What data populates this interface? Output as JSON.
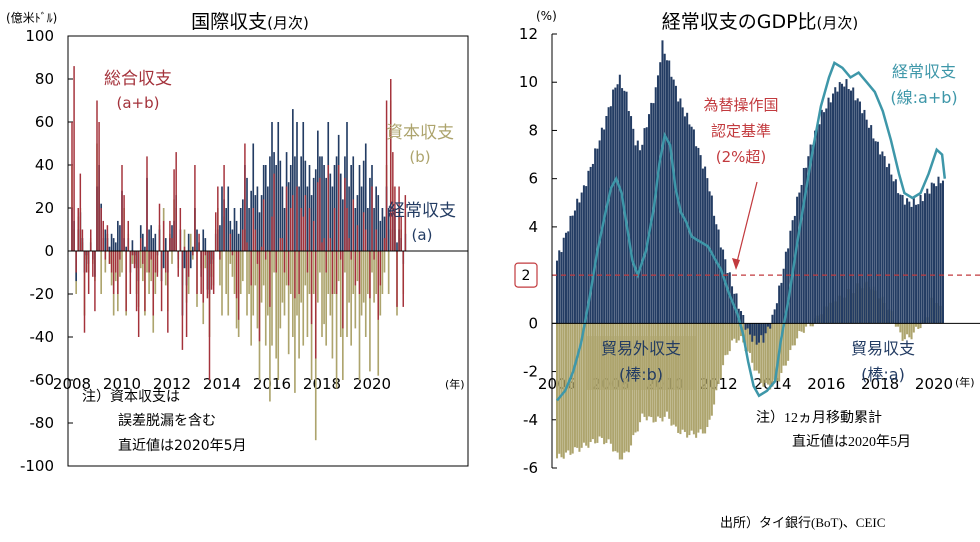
{
  "colors": {
    "current": "#233c63",
    "capital": "#ada46d",
    "overall": "#a4323b",
    "line": "#3e97a9",
    "threshold": "#c23a3e"
  },
  "source": "出所）タイ銀行(BoT)、CEIC",
  "chart_data": [
    {
      "type": "bar",
      "title": "国際収支",
      "title_suffix": "(月次)",
      "ylabel": "(億米ﾄﾞﾙ)",
      "xlabel": "(年)",
      "ylim": [
        -100,
        100
      ],
      "yticks": [
        "100",
        "80",
        "60",
        "40",
        "20",
        "0",
        "-20",
        "-40",
        "-60",
        "-80",
        "-100"
      ],
      "xticks": [
        "2008",
        "2010",
        "2012",
        "2014",
        "2016",
        "2018",
        "2020"
      ],
      "x_start": "2008-01",
      "x_end": "2020-05",
      "grid": false,
      "series_labels": {
        "overall": [
          "総合収支",
          "(a+b)"
        ],
        "capital": [
          "資本収支",
          "(b)"
        ],
        "current": [
          "経常収支",
          "(a)"
        ]
      },
      "note": [
        "注）資本収支は",
        "誤差脱漏を含む",
        "直近値は2020年5月"
      ],
      "current_account_monthly": [
        20,
        14,
        -14,
        10,
        18,
        6,
        -10,
        -2,
        -6,
        4,
        -4,
        -12,
        30,
        40,
        22,
        6,
        10,
        6,
        2,
        8,
        6,
        4,
        14,
        12,
        28,
        6,
        2,
        6,
        -10,
        5,
        -2,
        -8,
        -14,
        12,
        8,
        2,
        34,
        10,
        12,
        6,
        8,
        -2,
        10,
        -14,
        -8,
        6,
        -10,
        6,
        12,
        14,
        26,
        -4,
        10,
        -30,
        -8,
        -16,
        8,
        -8,
        2,
        20,
        10,
        4,
        -12,
        10,
        6,
        -18,
        -20,
        -6,
        -4,
        8,
        10,
        12,
        30,
        24,
        20,
        30,
        14,
        10,
        20,
        14,
        8,
        20,
        24,
        40,
        34,
        20,
        28,
        50,
        26,
        30,
        18,
        26,
        40,
        40,
        30,
        44,
        60,
        46,
        40,
        60,
        42,
        30,
        20,
        46,
        32,
        40,
        66,
        44,
        60,
        30,
        44,
        60,
        42,
        30,
        40,
        26,
        34,
        38,
        56,
        44,
        44,
        40,
        34,
        60,
        36,
        30,
        40,
        44,
        54,
        36,
        24,
        44,
        60,
        30,
        40,
        44,
        20,
        26,
        40,
        30,
        42,
        50,
        20,
        34,
        40,
        20,
        30,
        26,
        14,
        20,
        16,
        30,
        20,
        10,
        16,
        20,
        4,
        10,
        6,
        -6,
        8
      ],
      "capital_account_monthly": [
        40,
        10,
        -20,
        16,
        20,
        4,
        -30,
        -4,
        -10,
        6,
        -6,
        -14,
        50,
        30,
        -20,
        10,
        -10,
        8,
        -6,
        -16,
        -30,
        -14,
        -28,
        -12,
        -10,
        20,
        -30,
        8,
        -10,
        -6,
        -6,
        -20,
        -26,
        -8,
        -14,
        -30,
        -10,
        -20,
        -14,
        -38,
        -20,
        -10,
        12,
        -14,
        20,
        -16,
        -28,
        8,
        -6,
        24,
        20,
        -8,
        10,
        -16,
        10,
        -24,
        -20,
        8,
        -4,
        20,
        -26,
        4,
        -8,
        -34,
        -8,
        -4,
        -40,
        -12,
        -16,
        10,
        20,
        -16,
        -30,
        16,
        -20,
        -30,
        -6,
        -12,
        -20,
        -36,
        -40,
        -20,
        -14,
        10,
        -30,
        -20,
        -44,
        -30,
        -16,
        -36,
        -60,
        -24,
        -16,
        -44,
        -30,
        -70,
        -44,
        -10,
        -50,
        -60,
        -36,
        -24,
        -30,
        -16,
        -48,
        -20,
        -40,
        -66,
        -30,
        -50,
        -24,
        -44,
        -16,
        -40,
        -20,
        -60,
        -20,
        -88,
        -24,
        -10,
        -40,
        -34,
        -44,
        -20,
        -30,
        -50,
        -20,
        -64,
        -14,
        -40,
        -60,
        -10,
        -40,
        -24,
        -44,
        -20,
        -36,
        -14,
        -60,
        -30,
        -24,
        -40,
        -20,
        -56,
        -10,
        -24,
        -20,
        -58,
        -30,
        -20,
        -10,
        40,
        -20,
        70,
        30,
        10,
        -30,
        20,
        10,
        -20,
        18
      ],
      "overall_balance_monthly": [
        60,
        86,
        -10,
        20,
        36,
        10,
        -38,
        -10,
        -20,
        10,
        -12,
        -28,
        70,
        60,
        20,
        14,
        -4,
        12,
        -6,
        -10,
        -20,
        -10,
        -20,
        -4,
        40,
        26,
        -28,
        14,
        -20,
        -2,
        -8,
        -28,
        -40,
        6,
        -6,
        -28,
        44,
        -10,
        -4,
        -30,
        -10,
        -12,
        22,
        -28,
        14,
        -10,
        -38,
        14,
        6,
        38,
        46,
        -12,
        20,
        -46,
        2,
        -40,
        -12,
        0,
        -2,
        40,
        -20,
        8,
        -20,
        -24,
        -2,
        -22,
        -60,
        -18,
        -20,
        18,
        30,
        -4,
        0,
        40,
        0,
        0,
        8,
        -2,
        0,
        -22,
        -32,
        0,
        10,
        50,
        4,
        0,
        -16,
        20,
        10,
        -6,
        -42,
        2,
        24,
        -4,
        0,
        -26,
        16,
        36,
        -10,
        0,
        6,
        6,
        -10,
        30,
        -16,
        20,
        26,
        -22,
        30,
        -20,
        20,
        16,
        26,
        -10,
        20,
        -34,
        14,
        -50,
        32,
        34,
        4,
        6,
        -10,
        40,
        6,
        -20,
        20,
        -20,
        40,
        -4,
        -36,
        34,
        20,
        6,
        -4,
        24,
        -16,
        12,
        -20,
        0,
        18,
        10,
        0,
        -22,
        30,
        -4,
        10,
        -32,
        -16,
        0,
        6,
        70,
        0,
        80,
        46,
        30,
        -26,
        30,
        16,
        -26,
        26
      ]
    },
    {
      "type": "bar",
      "title": "経常収支のGDP比",
      "title_suffix": "(月次)",
      "ylabel": "(%)",
      "xlabel": "(年)",
      "ylim": [
        -6,
        12
      ],
      "yticks": [
        "12",
        "10",
        "8",
        "6",
        "4",
        "2",
        "0",
        "-2",
        "-4",
        "-6"
      ],
      "xticks": [
        "2006",
        "2008",
        "2010",
        "2012",
        "2014",
        "2016",
        "2018",
        "2020"
      ],
      "x_start": "2006-01",
      "x_end": "2020-05",
      "grid": false,
      "threshold": {
        "value": 2,
        "label": "2",
        "text": [
          "為替操作国",
          "認定基準",
          "(2%超)"
        ]
      },
      "series_labels": {
        "line": [
          "経常収支",
          "(線:a+b)"
        ],
        "services": [
          "貿易外収支",
          "(棒:b)"
        ],
        "trade": [
          "貿易収支",
          "(棒:a)"
        ]
      },
      "note": [
        "注）12ヵ月移動累計",
        "直近値は2020年5月"
      ],
      "trade_balance_pct": [
        [
          2006.0,
          2.6
        ],
        [
          2006.3,
          3.6
        ],
        [
          2006.6,
          4.6
        ],
        [
          2007.0,
          5.6
        ],
        [
          2007.4,
          7.0
        ],
        [
          2007.8,
          8.4
        ],
        [
          2008.1,
          9.6
        ],
        [
          2008.3,
          10.2
        ],
        [
          2008.6,
          9.4
        ],
        [
          2008.9,
          7.6
        ],
        [
          2009.1,
          7.2
        ],
        [
          2009.4,
          8.6
        ],
        [
          2009.7,
          9.8
        ],
        [
          2009.9,
          11.6
        ],
        [
          2010.2,
          10.6
        ],
        [
          2010.5,
          9.4
        ],
        [
          2010.8,
          8.6
        ],
        [
          2011.0,
          8.2
        ],
        [
          2011.3,
          7.0
        ],
        [
          2011.6,
          6.0
        ],
        [
          2011.9,
          4.2
        ],
        [
          2012.2,
          2.8
        ],
        [
          2012.5,
          1.6
        ],
        [
          2012.8,
          0.6
        ],
        [
          2013.1,
          -0.4
        ],
        [
          2013.4,
          -0.8
        ],
        [
          2013.7,
          -0.6
        ],
        [
          2014.0,
          0.2
        ],
        [
          2014.3,
          1.6
        ],
        [
          2014.6,
          3.4
        ],
        [
          2014.9,
          5.0
        ],
        [
          2015.2,
          6.4
        ],
        [
          2015.5,
          7.6
        ],
        [
          2015.8,
          8.6
        ],
        [
          2016.1,
          9.2
        ],
        [
          2016.4,
          9.8
        ],
        [
          2016.7,
          10.0
        ],
        [
          2017.0,
          9.6
        ],
        [
          2017.3,
          9.0
        ],
        [
          2017.6,
          8.2
        ],
        [
          2017.9,
          7.4
        ],
        [
          2018.2,
          6.8
        ],
        [
          2018.5,
          6.0
        ],
        [
          2018.8,
          5.2
        ],
        [
          2019.1,
          5.0
        ],
        [
          2019.4,
          5.0
        ],
        [
          2019.7,
          5.4
        ],
        [
          2020.0,
          5.8
        ],
        [
          2020.4,
          6.0
        ]
      ],
      "services_balance_pct": [
        [
          2006.0,
          -5.6
        ],
        [
          2006.4,
          -5.4
        ],
        [
          2006.8,
          -5.2
        ],
        [
          2007.2,
          -5.0
        ],
        [
          2007.6,
          -4.8
        ],
        [
          2008.0,
          -5.0
        ],
        [
          2008.3,
          -5.6
        ],
        [
          2008.6,
          -5.4
        ],
        [
          2008.9,
          -4.6
        ],
        [
          2009.2,
          -3.8
        ],
        [
          2009.5,
          -4.0
        ],
        [
          2009.8,
          -4.0
        ],
        [
          2010.1,
          -3.8
        ],
        [
          2010.4,
          -4.4
        ],
        [
          2010.8,
          -4.6
        ],
        [
          2011.2,
          -4.6
        ],
        [
          2011.6,
          -4.4
        ],
        [
          2011.9,
          -3.0
        ],
        [
          2012.2,
          -1.6
        ],
        [
          2012.5,
          -0.8
        ],
        [
          2012.8,
          -0.6
        ],
        [
          2013.1,
          -1.2
        ],
        [
          2013.4,
          -2.0
        ],
        [
          2013.7,
          -2.6
        ],
        [
          2014.0,
          -2.6
        ],
        [
          2014.3,
          -2.2
        ],
        [
          2014.6,
          -1.4
        ],
        [
          2014.9,
          -0.6
        ],
        [
          2015.2,
          -0.2
        ],
        [
          2015.5,
          0.0
        ],
        [
          2015.8,
          0.4
        ],
        [
          2016.1,
          0.8
        ],
        [
          2016.4,
          1.0
        ],
        [
          2016.7,
          1.2
        ],
        [
          2017.0,
          1.4
        ],
        [
          2017.3,
          1.6
        ],
        [
          2017.6,
          1.6
        ],
        [
          2017.9,
          1.2
        ],
        [
          2018.2,
          0.8
        ],
        [
          2018.5,
          0.2
        ],
        [
          2018.8,
          -0.6
        ],
        [
          2019.1,
          -0.6
        ],
        [
          2019.4,
          -0.2
        ],
        [
          2019.7,
          0.2
        ],
        [
          2020.0,
          1.2
        ],
        [
          2020.4,
          0.2
        ]
      ],
      "current_account_pct": [
        [
          2006.0,
          -3.2
        ],
        [
          2006.3,
          -2.8
        ],
        [
          2006.6,
          -2.0
        ],
        [
          2006.9,
          -0.8
        ],
        [
          2007.2,
          1.0
        ],
        [
          2007.5,
          3.0
        ],
        [
          2007.8,
          4.6
        ],
        [
          2008.0,
          5.6
        ],
        [
          2008.2,
          6.0
        ],
        [
          2008.4,
          5.4
        ],
        [
          2008.6,
          4.0
        ],
        [
          2008.8,
          2.6
        ],
        [
          2009.0,
          2.0
        ],
        [
          2009.3,
          3.0
        ],
        [
          2009.6,
          4.8
        ],
        [
          2009.8,
          6.6
        ],
        [
          2010.0,
          7.8
        ],
        [
          2010.2,
          7.4
        ],
        [
          2010.4,
          5.6
        ],
        [
          2010.6,
          4.6
        ],
        [
          2010.8,
          4.2
        ],
        [
          2011.0,
          3.6
        ],
        [
          2011.3,
          3.4
        ],
        [
          2011.6,
          3.2
        ],
        [
          2011.9,
          2.6
        ],
        [
          2012.1,
          2.2
        ],
        [
          2012.4,
          1.2
        ],
        [
          2012.7,
          0.4
        ],
        [
          2012.9,
          -0.4
        ],
        [
          2013.1,
          -1.6
        ],
        [
          2013.3,
          -2.6
        ],
        [
          2013.5,
          -3.0
        ],
        [
          2013.8,
          -2.8
        ],
        [
          2014.1,
          -2.4
        ],
        [
          2014.3,
          -0.8
        ],
        [
          2014.6,
          1.0
        ],
        [
          2014.9,
          3.2
        ],
        [
          2015.2,
          5.2
        ],
        [
          2015.5,
          7.2
        ],
        [
          2015.8,
          9.0
        ],
        [
          2016.1,
          10.2
        ],
        [
          2016.3,
          10.8
        ],
        [
          2016.6,
          10.6
        ],
        [
          2016.9,
          10.2
        ],
        [
          2017.2,
          10.4
        ],
        [
          2017.5,
          10.0
        ],
        [
          2017.8,
          9.6
        ],
        [
          2018.1,
          8.8
        ],
        [
          2018.4,
          7.6
        ],
        [
          2018.7,
          6.2
        ],
        [
          2018.9,
          5.4
        ],
        [
          2019.2,
          5.2
        ],
        [
          2019.5,
          5.4
        ],
        [
          2019.8,
          6.2
        ],
        [
          2020.1,
          7.2
        ],
        [
          2020.3,
          7.0
        ],
        [
          2020.4,
          6.0
        ]
      ]
    }
  ]
}
